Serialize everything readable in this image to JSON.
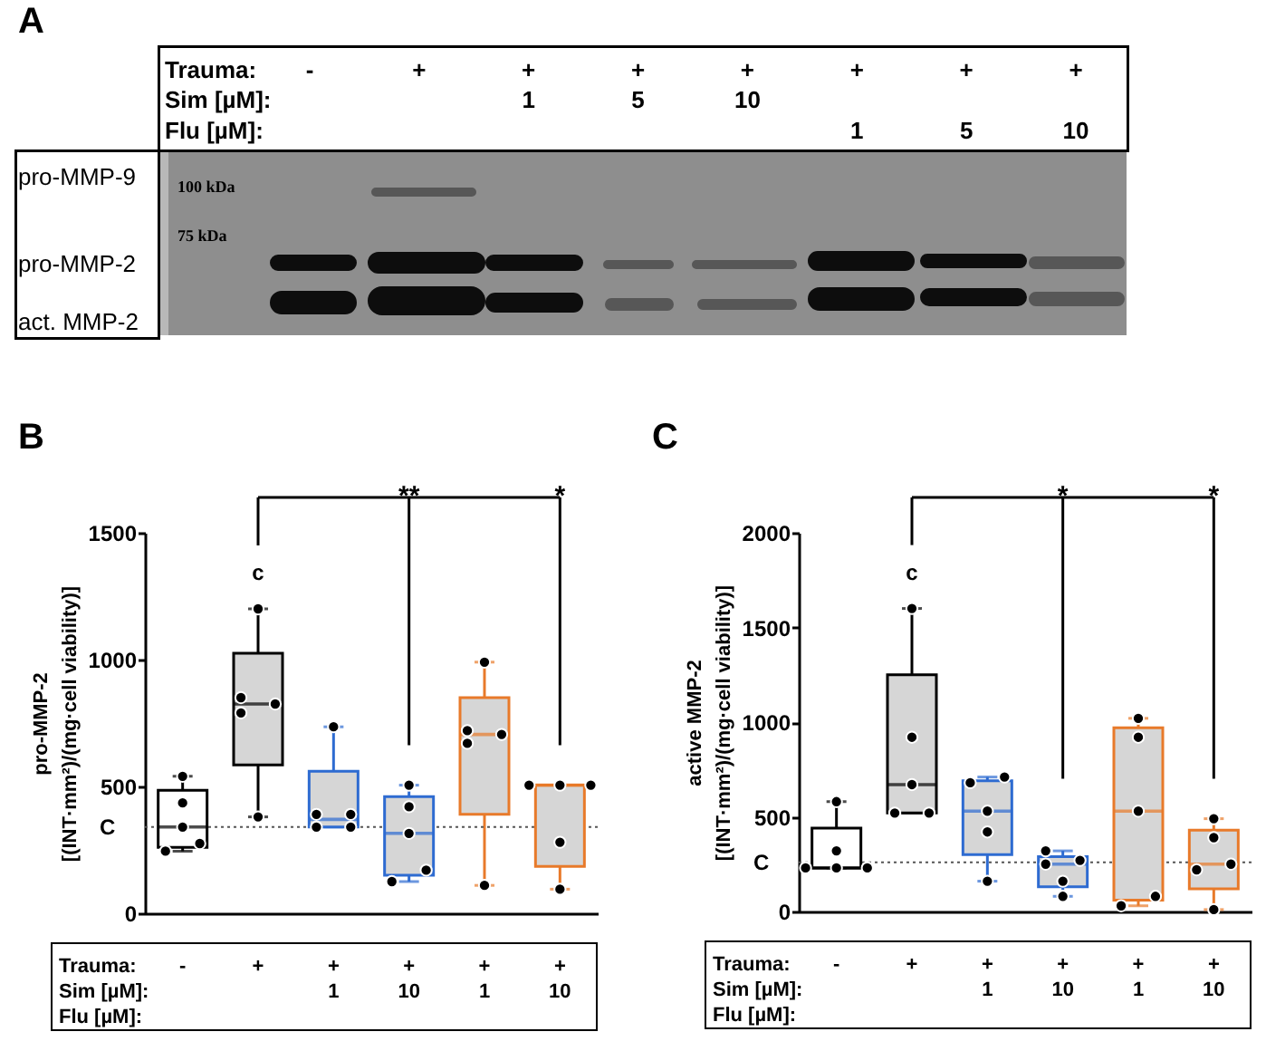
{
  "chart_data": [
    {
      "type": "other",
      "title": "A",
      "xlabel": "Trauma:\nSim [µM]:\nFlu [µM]:",
      "categories": [
        "-\n\n",
        "+\n\n",
        "+\n1\n",
        "+\n5\n",
        "+\n10\n",
        "+\n\n1",
        "+\n\n5",
        "+\n\n10"
      ],
      "annotations": [
        "pro-MMP-9",
        "pro-MMP-2",
        "act. MMP-2",
        "100 kDa",
        "75 kDa"
      ]
    },
    {
      "type": "box",
      "title": "B",
      "xlabel": "Trauma:\nSim [µM]:\nFlu [µM]:",
      "ylabel": "pro-MMP-2\n[(INT·mm²)/(mg·cell viability)]",
      "categories": [
        "-\n\n",
        "+\n\n",
        "+\n1\n",
        "+\n10\n",
        "+\n\n1",
        "+\n\n10"
      ],
      "boxes": [
        {
          "low": 245,
          "q1": 260,
          "median": 340,
          "q3": 485,
          "high": 540
        },
        {
          "low": 380,
          "q1": 585,
          "median": 825,
          "q3": 1025,
          "high": 1200
        },
        {
          "low": 340,
          "q1": 340,
          "median": 370,
          "q3": 560,
          "high": 735
        },
        {
          "low": 125,
          "q1": 150,
          "median": 315,
          "q3": 460,
          "high": 505
        },
        {
          "low": 110,
          "q1": 390,
          "median": 705,
          "q3": 850,
          "high": 990
        },
        {
          "low": 95,
          "q1": 185,
          "median": 505,
          "q3": 505,
          "high": 505
        }
      ],
      "colors": [
        "#000000",
        "#000000",
        "#2e6bd1",
        "#2e6bd1",
        "#e87a2a",
        "#e87a2a"
      ],
      "series": [
        {
          "type": "scatter",
          "color": "#000000",
          "x": [
            "-\n\n",
            "-\n\n",
            "-\n\n",
            "-\n\n",
            "-\n\n",
            "+\n\n",
            "+\n\n",
            "+\n\n",
            "+\n\n",
            "+\n\n",
            "+\n1\n",
            "+\n1\n",
            "+\n1\n",
            "+\n1\n",
            "+\n1\n",
            "+\n10\n",
            "+\n10\n",
            "+\n10\n",
            "+\n10\n",
            "+\n10\n",
            "+\n\n1",
            "+\n\n1",
            "+\n\n1",
            "+\n\n1",
            "+\n\n1",
            "+\n\n10",
            "+\n\n10",
            "+\n\n10",
            "+\n\n10",
            "+\n\n10"
          ],
          "values": [
            245,
            275,
            340,
            435,
            540,
            380,
            790,
            825,
            850,
            1200,
            340,
            340,
            390,
            390,
            735,
            125,
            170,
            315,
            420,
            505,
            110,
            670,
            705,
            720,
            990,
            95,
            280,
            505,
            505,
            505
          ]
        }
      ],
      "ylim": [
        0,
        1500
      ],
      "yticks": [
        0,
        500,
        1000,
        1500
      ],
      "ref_lines": [
        {
          "axis": "y",
          "value": 340,
          "label": "C",
          "line_style": "dotted",
          "color": "#555555"
        }
      ],
      "annotations": [
        "c",
        "**",
        "*"
      ],
      "marker": "circle"
    },
    {
      "type": "box",
      "title": "C",
      "xlabel": "Trauma:\nSim [µM]:\nFlu [µM]:",
      "ylabel": "active MMP-2\n[(INT·mm²)/(mg·cell viability)]",
      "categories": [
        "-\n\n",
        "+\n\n",
        "+\n1\n",
        "+\n10\n",
        "+\n\n1",
        "+\n\n10"
      ],
      "boxes": [
        {
          "low": 230,
          "q1": 230,
          "median": 230,
          "q3": 440,
          "high": 580
        },
        {
          "low": 520,
          "q1": 520,
          "median": 670,
          "q3": 1250,
          "high": 1600
        },
        {
          "low": 160,
          "q1": 300,
          "median": 530,
          "q3": 690,
          "high": 710
        },
        {
          "low": 80,
          "q1": 130,
          "median": 250,
          "q3": 290,
          "high": 320
        },
        {
          "low": 30,
          "q1": 60,
          "median": 530,
          "q3": 970,
          "high": 1020
        },
        {
          "low": 10,
          "q1": 120,
          "median": 250,
          "q3": 430,
          "high": 490
        }
      ],
      "colors": [
        "#000000",
        "#000000",
        "#2e6bd1",
        "#2e6bd1",
        "#e87a2a",
        "#e87a2a"
      ],
      "series": [
        {
          "type": "scatter",
          "color": "#000000",
          "x": [
            "-\n\n",
            "-\n\n",
            "-\n\n",
            "-\n\n",
            "-\n\n",
            "+\n\n",
            "+\n\n",
            "+\n\n",
            "+\n\n",
            "+\n\n",
            "+\n1\n",
            "+\n1\n",
            "+\n1\n",
            "+\n1\n",
            "+\n1\n",
            "+\n10\n",
            "+\n10\n",
            "+\n10\n",
            "+\n10\n",
            "+\n10\n",
            "+\n\n1",
            "+\n\n1",
            "+\n\n1",
            "+\n\n1",
            "+\n\n1",
            "+\n\n10",
            "+\n\n10",
            "+\n\n10",
            "+\n\n10",
            "+\n\n10"
          ],
          "values": [
            230,
            230,
            230,
            320,
            580,
            520,
            520,
            670,
            920,
            1600,
            160,
            420,
            530,
            680,
            710,
            80,
            160,
            250,
            270,
            320,
            30,
            80,
            530,
            920,
            1020,
            10,
            220,
            250,
            390,
            490
          ]
        }
      ],
      "ylim": [
        0,
        2000
      ],
      "yticks": [
        0,
        500,
        1000,
        1500,
        2000
      ],
      "ref_lines": [
        {
          "axis": "y",
          "value": 260,
          "label": "C",
          "line_style": "dotted",
          "color": "#555555"
        }
      ],
      "annotations": [
        "c",
        "*",
        "*"
      ],
      "marker": "circle"
    }
  ]
}
